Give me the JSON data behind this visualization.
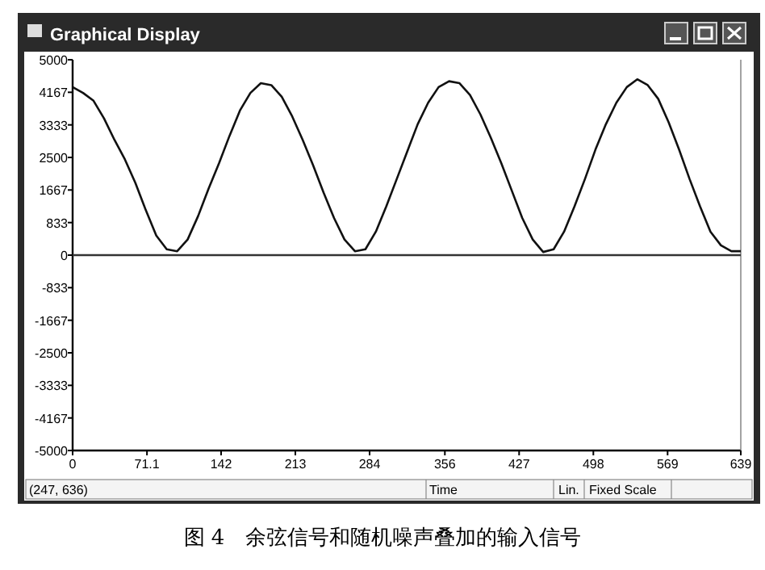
{
  "chart_data": {
    "type": "line",
    "title": "图 4　余弦信号和随机噪声叠加的输入信号",
    "subtitle": "Graphical Display",
    "xlabel": "Time",
    "annotations": [
      "(247, 636)",
      "Lin.",
      "Fixed Scale"
    ],
    "x": [
      0,
      10,
      20,
      30,
      40,
      50,
      60,
      70,
      80,
      90,
      100,
      110,
      120,
      130,
      140,
      150,
      160,
      170,
      180,
      190,
      200,
      210,
      220,
      230,
      240,
      250,
      260,
      270,
      280,
      290,
      300,
      310,
      320,
      330,
      340,
      350,
      360,
      370,
      380,
      390,
      400,
      410,
      420,
      430,
      440,
      450,
      460,
      470,
      480,
      490,
      500,
      510,
      520,
      530,
      540,
      550,
      560,
      570,
      580,
      590,
      600,
      610,
      620,
      630,
      639
    ],
    "series": [
      {
        "color": "#111111",
        "values": [
          4300,
          4150,
          3950,
          3500,
          2950,
          2450,
          1850,
          1150,
          500,
          150,
          100,
          400,
          1000,
          1700,
          2350,
          3050,
          3700,
          4150,
          4400,
          4350,
          4050,
          3550,
          2950,
          2300,
          1600,
          950,
          400,
          100,
          150,
          600,
          1250,
          1950,
          2650,
          3350,
          3900,
          4300,
          4450,
          4400,
          4100,
          3600,
          3000,
          2350,
          1650,
          950,
          400,
          80,
          150,
          600,
          1250,
          1950,
          2700,
          3350,
          3900,
          4300,
          4500,
          4350,
          4000,
          3400,
          2700,
          1950,
          1250,
          600,
          250,
          100,
          100
        ]
      }
    ],
    "xlim": [
      0,
      639
    ],
    "ylim": [
      -5000,
      5000
    ],
    "xticks": [
      0,
      71.1,
      142,
      213,
      284,
      356,
      427,
      498,
      569,
      639
    ],
    "yticks": [
      5000,
      4167,
      3333,
      2500,
      1667,
      833,
      0,
      -833,
      -1667,
      -2500,
      -3333,
      -4167,
      -5000
    ],
    "ref_lines": [
      {
        "axis": "y",
        "value": 0,
        "color": "#333333"
      }
    ],
    "grid": false,
    "marker": "none",
    "line_style": "solid"
  }
}
